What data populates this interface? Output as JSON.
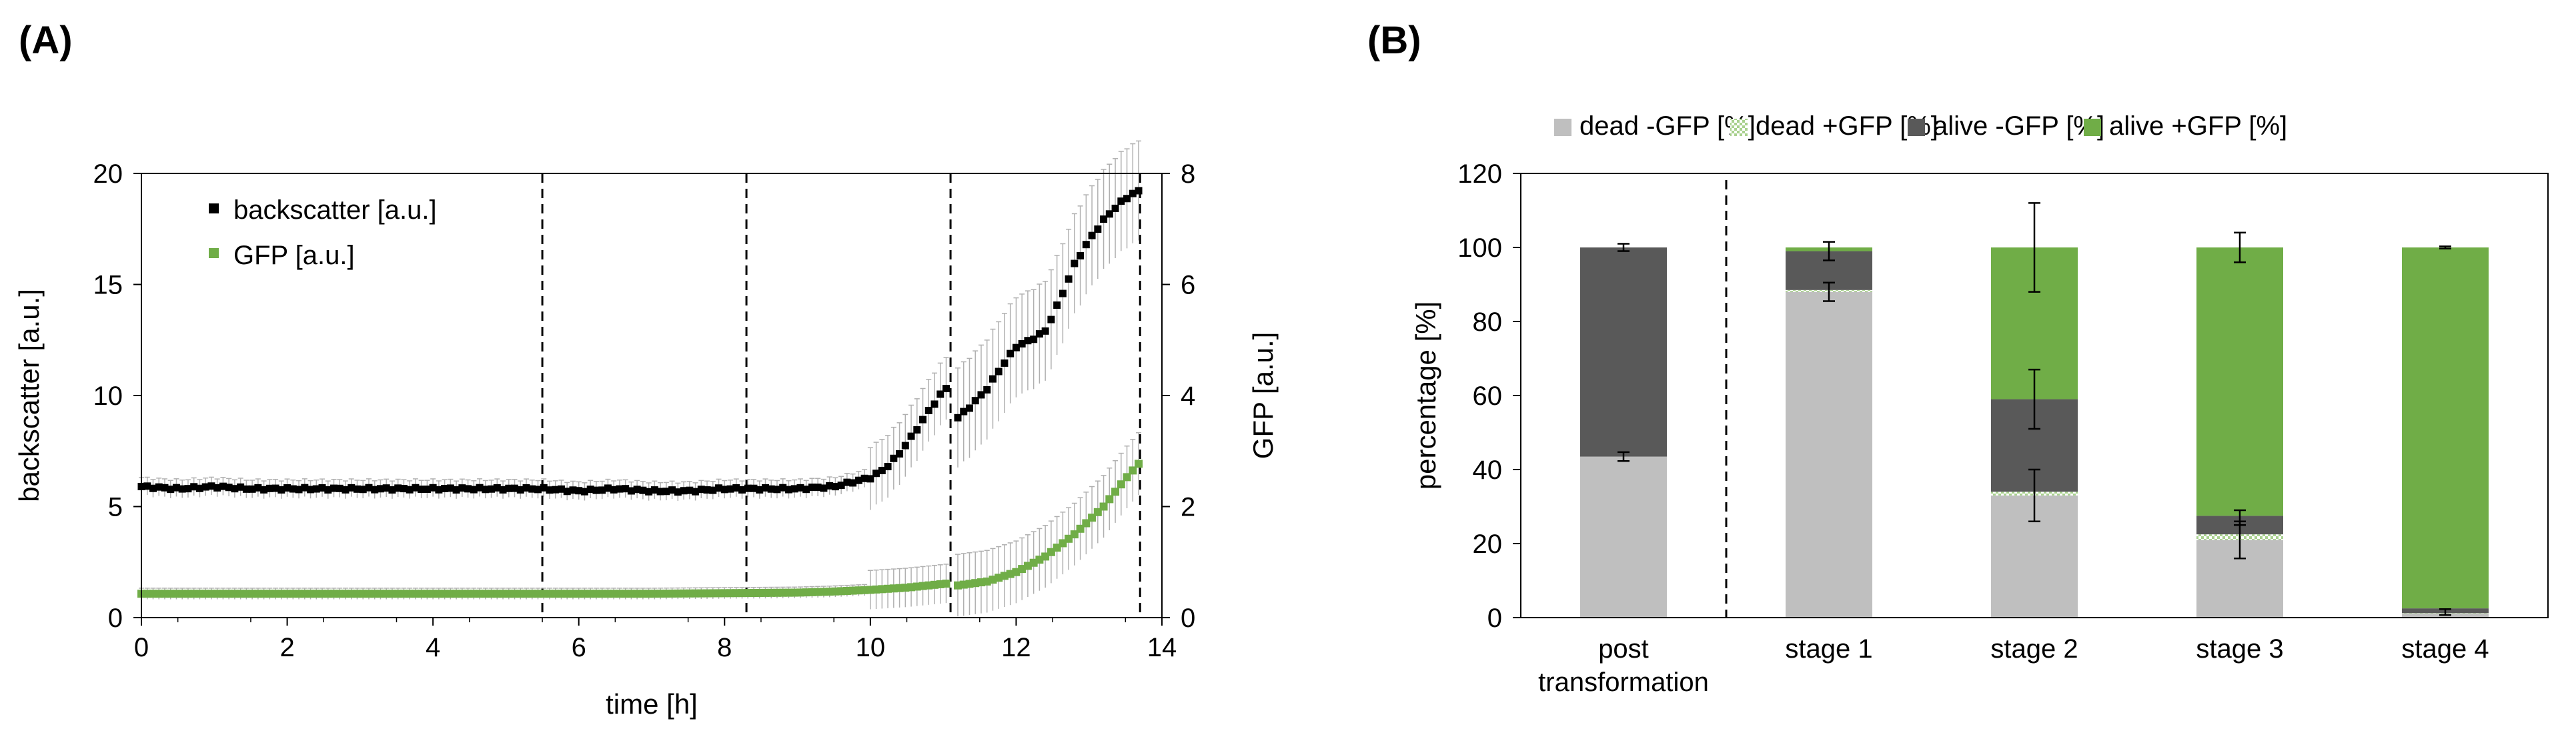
{
  "panel_labels": {
    "a": "(A)",
    "b": "(B)"
  },
  "chart_data": [
    {
      "type": "line",
      "panel": "(A)",
      "xlabel": "time [h]",
      "ylabel": "backscatter [a.u.]",
      "y2label": "GFP [a.u.]",
      "xlim": [
        0,
        14
      ],
      "ylim": [
        0,
        20
      ],
      "y2lim": [
        0,
        8
      ],
      "x_ticks": [
        "0",
        "2",
        "4",
        "6",
        "8",
        "10",
        "12",
        "14"
      ],
      "y_ticks": [
        "0",
        "5",
        "10",
        "15",
        "20"
      ],
      "y2_ticks": [
        "0",
        "2",
        "4",
        "6",
        "8"
      ],
      "vlines_x": [
        5.5,
        8.3,
        11.1,
        13.7
      ],
      "legend_position": "top-left",
      "series": [
        {
          "name": "backscatter [a.u.]",
          "axis": "left",
          "color": "#000000",
          "error_color": "#b0b0b0",
          "x": [
            0,
            0.5,
            1,
            1.5,
            2,
            2.5,
            3,
            3.5,
            4,
            4.5,
            5,
            5.5,
            6,
            6.5,
            7,
            7.5,
            8,
            8.5,
            9,
            9.5,
            10,
            10.2,
            10.4,
            10.6,
            10.8,
            11.0,
            11.1
          ],
          "y": [
            5.9,
            5.8,
            5.9,
            5.8,
            5.8,
            5.8,
            5.8,
            5.8,
            5.8,
            5.8,
            5.8,
            5.8,
            5.7,
            5.8,
            5.7,
            5.7,
            5.8,
            5.8,
            5.8,
            5.9,
            6.3,
            6.7,
            7.4,
            8.3,
            9.3,
            10.2,
            10.5
          ],
          "x2": [
            11.2,
            11.4,
            11.6,
            11.8,
            12.0,
            12.2,
            12.4,
            12.6,
            12.8,
            13.0,
            13.2,
            13.4,
            13.6,
            13.7
          ],
          "y2": [
            9.0,
            9.6,
            10.3,
            11.3,
            12.2,
            12.5,
            12.9,
            14.3,
            15.9,
            17.0,
            17.9,
            18.6,
            19.1,
            19.2
          ],
          "error_band": 0.4
        },
        {
          "name": "GFP [a.u.]",
          "axis": "right",
          "color": "#70ad47",
          "error_color": "#b0b0b0",
          "x": [
            0,
            1,
            2,
            3,
            4,
            5,
            6,
            7,
            8,
            9,
            9.5,
            10,
            10.5,
            11.1
          ],
          "y": [
            0.43,
            0.43,
            0.43,
            0.43,
            0.43,
            0.43,
            0.43,
            0.43,
            0.44,
            0.45,
            0.47,
            0.5,
            0.54,
            0.62
          ],
          "x2": [
            11.2,
            11.6,
            12.0,
            12.4,
            12.8,
            13.2,
            13.5,
            13.7
          ],
          "y2": [
            0.58,
            0.65,
            0.82,
            1.1,
            1.5,
            2.0,
            2.5,
            2.8
          ],
          "error_band": 0.1
        }
      ]
    },
    {
      "type": "bar",
      "stacked": true,
      "panel": "(B)",
      "ylabel": "percentage [%]",
      "ylim": [
        0,
        120
      ],
      "y_ticks": [
        "0",
        "20",
        "40",
        "60",
        "80",
        "100",
        "120"
      ],
      "categories": [
        "post\ntransformation",
        "stage 1",
        "stage 2",
        "stage 3",
        "stage 4"
      ],
      "category_lines": [
        [
          "post",
          "transformation"
        ],
        [
          "stage 1"
        ],
        [
          "stage 2"
        ],
        [
          "stage 3"
        ],
        [
          "stage 4"
        ]
      ],
      "divider_after_category": 0,
      "legend_position": "top",
      "series": [
        {
          "name": "dead -GFP [%]",
          "color": "#bfbfbf",
          "pattern": false,
          "values": [
            43.5,
            88,
            33,
            21,
            1
          ]
        },
        {
          "name": "dead +GFP [%]",
          "color": "#a9d18e",
          "pattern": true,
          "values": [
            0,
            0.5,
            1,
            1.5,
            0.2
          ]
        },
        {
          "name": "alive -GFP [%]",
          "color": "#595959",
          "pattern": false,
          "values": [
            56.5,
            10.5,
            25,
            5,
            1.3
          ]
        },
        {
          "name": "alive +GFP [%]",
          "color": "#70ad47",
          "pattern": false,
          "values": [
            0,
            1,
            41,
            72.5,
            97.5
          ]
        }
      ],
      "error_bars": [
        {
          "value": 43.5,
          "err": 1.2,
          "category": 0
        },
        {
          "value": 100,
          "err": 1.0,
          "category": 0
        },
        {
          "value": 88,
          "err": 2.5,
          "category": 1
        },
        {
          "value": 99,
          "err": 2.5,
          "category": 1
        },
        {
          "value": 33,
          "err": 7,
          "category": 2
        },
        {
          "value": 59,
          "err": 8,
          "category": 2
        },
        {
          "value": 100,
          "err": 12,
          "category": 2
        },
        {
          "value": 21,
          "err": 5,
          "category": 3
        },
        {
          "value": 27,
          "err": 2,
          "category": 3
        },
        {
          "value": 100,
          "err": 4,
          "category": 3
        },
        {
          "value": 1.5,
          "err": 0.8,
          "category": 4
        },
        {
          "value": 100,
          "err": 0.3,
          "category": 4
        }
      ]
    }
  ]
}
